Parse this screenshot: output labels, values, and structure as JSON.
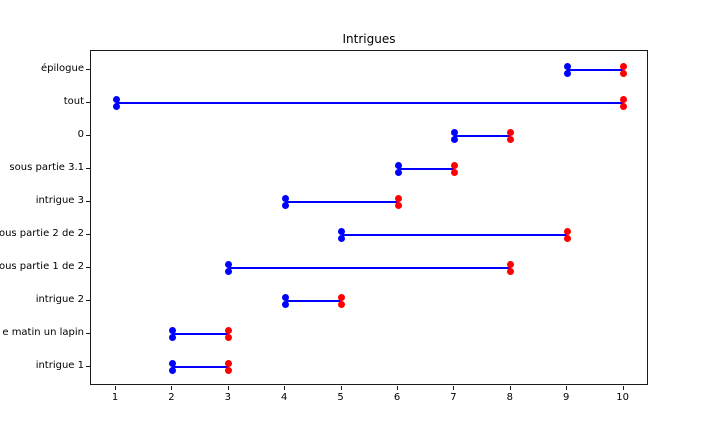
{
  "chart_data": {
    "type": "line",
    "title": "Intrigues",
    "xlabel": "",
    "ylabel": "",
    "grid": false,
    "legend_position": "none",
    "xticks": [
      1,
      2,
      3,
      4,
      5,
      6,
      7,
      8,
      9,
      10
    ],
    "xlim": [
      0.55,
      10.45
    ],
    "line_color": "#0000ff",
    "start_marker_color": "#0000ff",
    "end_marker_color": "#ff0000",
    "axis_color": "#1a1a1a",
    "tasks": [
      {
        "label": "épilogue",
        "start": 9,
        "end": 10
      },
      {
        "label": "tout",
        "start": 1,
        "end": 10
      },
      {
        "label": "0",
        "start": 7,
        "end": 8
      },
      {
        "label": "sous partie 3.1",
        "start": 6,
        "end": 7
      },
      {
        "label": "intrigue 3",
        "start": 4,
        "end": 6
      },
      {
        "label": "ous partie 2 de 2",
        "start": 5,
        "end": 9
      },
      {
        "label": "ous partie 1 de 2",
        "start": 3,
        "end": 8
      },
      {
        "label": "intrigue 2",
        "start": 4,
        "end": 5
      },
      {
        "label": "e matin un lapin",
        "start": 2,
        "end": 3
      },
      {
        "label": "intrigue 1",
        "start": 2,
        "end": 3
      }
    ]
  }
}
